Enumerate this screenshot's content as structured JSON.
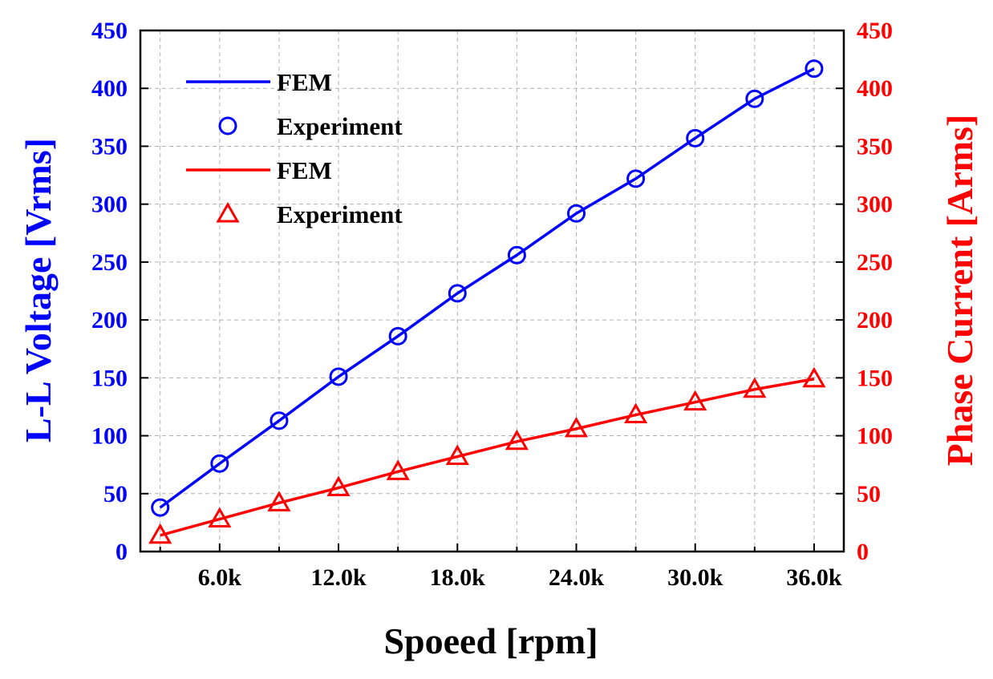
{
  "chart_data": {
    "type": "line",
    "x": [
      3000,
      6000,
      9000,
      12000,
      15000,
      18000,
      21000,
      24000,
      27000,
      30000,
      33000,
      36000
    ],
    "x_tick_labels": [
      "6.0k",
      "12.0k",
      "18.0k",
      "24.0k",
      "30.0k",
      "36.0k"
    ],
    "x_tick_values": [
      6000,
      12000,
      18000,
      24000,
      30000,
      36000
    ],
    "xlim": [
      2000,
      37500
    ],
    "xlabel": "Spoeed [rpm]",
    "ylabel_left": "L-L Voltage [Vrms]",
    "ylabel_right": "Phase Current [Arms]",
    "ylim_left": [
      0,
      450
    ],
    "ylim_right": [
      0,
      450
    ],
    "y_tick_labels": [
      "0",
      "50",
      "100",
      "150",
      "200",
      "250",
      "300",
      "350",
      "400",
      "450"
    ],
    "y_tick_values": [
      0,
      50,
      100,
      150,
      200,
      250,
      300,
      350,
      400,
      450
    ],
    "grid": true,
    "legend_position": "top-left",
    "colors": {
      "voltage": "#0000ff",
      "current": "#ff0000",
      "axis": "#000000",
      "grid": "#b0b0b0"
    },
    "series": [
      {
        "name": "FEM",
        "axis": "left",
        "style": "line",
        "color": "#0000ff",
        "values": [
          38,
          76,
          113,
          151,
          186,
          223,
          256,
          292,
          322,
          357,
          391,
          417
        ]
      },
      {
        "name": "Experiment",
        "axis": "left",
        "style": "circle",
        "color": "#0000ff",
        "values": [
          38,
          76,
          113,
          151,
          186,
          223,
          256,
          292,
          322,
          357,
          391,
          417
        ]
      },
      {
        "name": "FEM",
        "axis": "right",
        "style": "line",
        "color": "#ff0000",
        "values": [
          14,
          28,
          42,
          55,
          69,
          82,
          95,
          106,
          118,
          129,
          140,
          149
        ]
      },
      {
        "name": "Experiment",
        "axis": "right",
        "style": "triangle",
        "color": "#ff0000",
        "values": [
          14,
          28,
          42,
          55,
          69,
          82,
          95,
          106,
          118,
          129,
          140,
          149
        ]
      }
    ]
  }
}
